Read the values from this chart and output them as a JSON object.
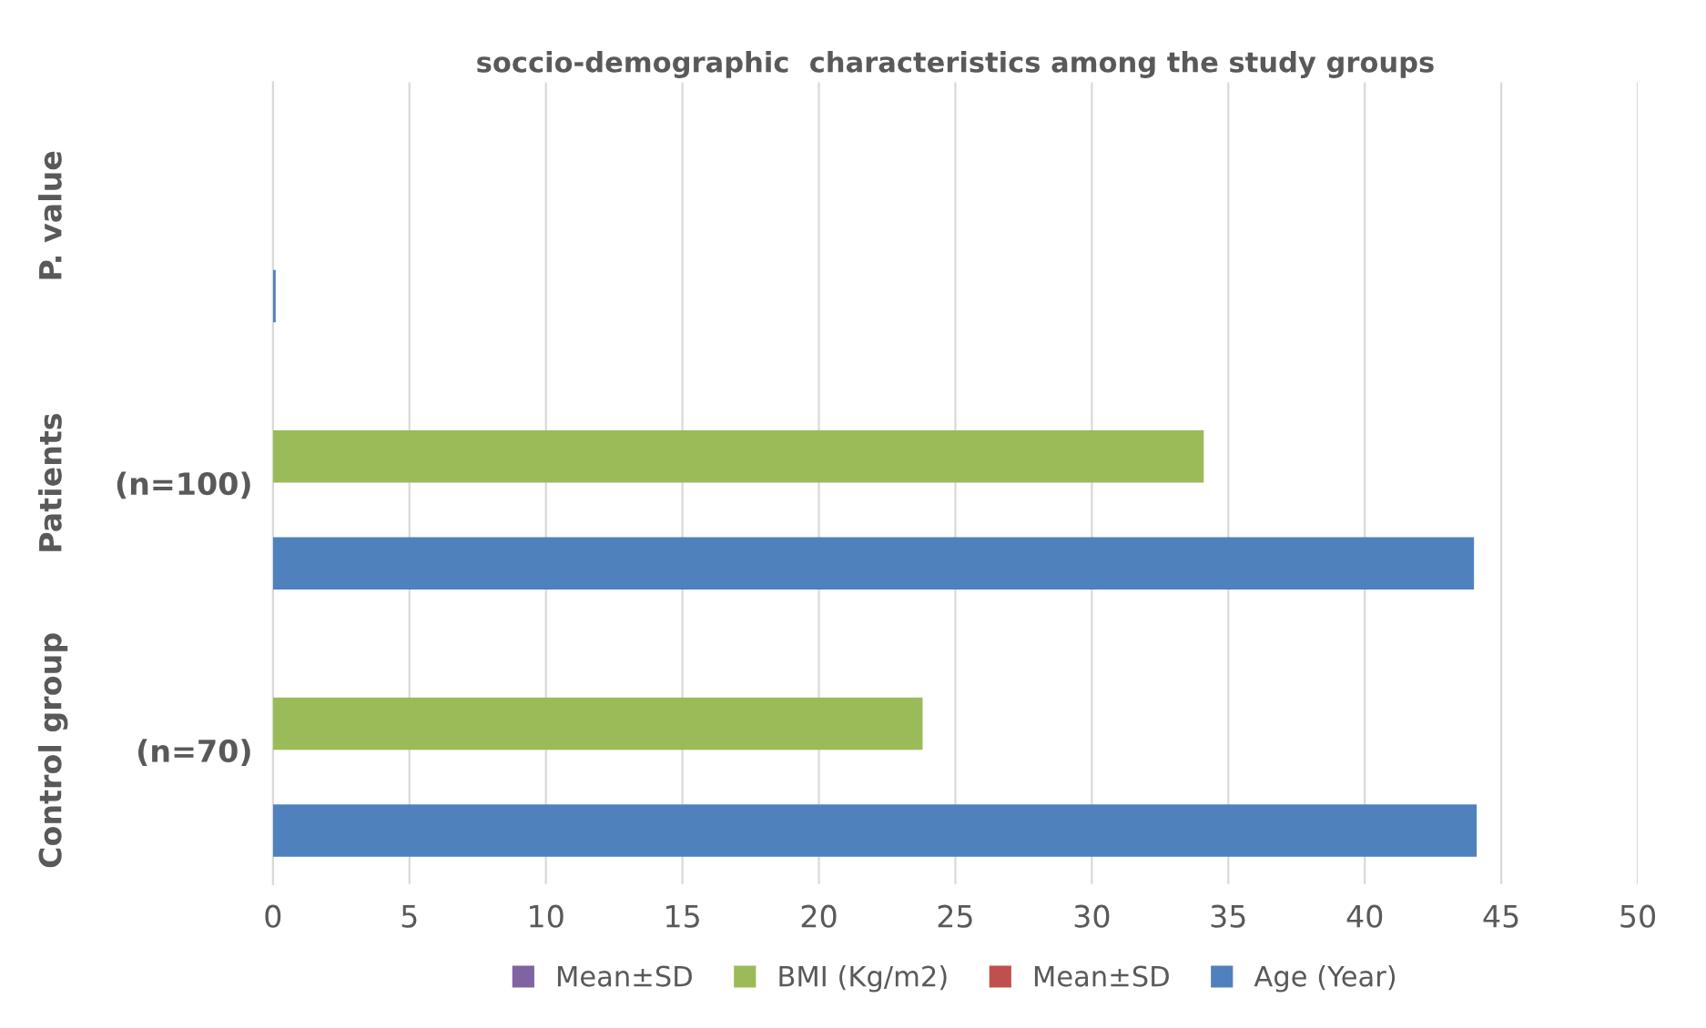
{
  "chart_data": {
    "type": "bar",
    "orientation": "horizontal",
    "title": "soccio-demographic  characteristics among the study groups",
    "categories": [
      null,
      "(n=100)",
      "(n=70)"
    ],
    "annotations": [
      "P. value",
      "Patients",
      "Control group"
    ],
    "series": [
      {
        "name": "Mean±SD",
        "color": "#8064a2",
        "values": [
          null,
          null,
          null
        ]
      },
      {
        "name": "BMI (Kg/m2)",
        "color": "#9bbb59",
        "values": [
          null,
          34.1,
          23.8
        ]
      },
      {
        "name": "Mean±SD",
        "color": "#c0504d",
        "values": [
          null,
          null,
          null
        ]
      },
      {
        "name": "Age (Year)",
        "color": "#4f81bd",
        "values": [
          0.1,
          44.0,
          44.1
        ]
      }
    ],
    "xlim": [
      0,
      50
    ],
    "xticks": [
      0,
      5,
      10,
      15,
      20,
      25,
      30,
      35,
      40,
      45,
      50
    ],
    "grid": "x",
    "legend": "bottom"
  }
}
